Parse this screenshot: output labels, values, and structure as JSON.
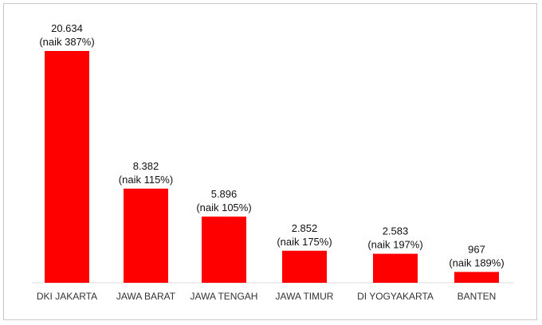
{
  "chart_data": {
    "type": "bar",
    "categories": [
      "DKI JAKARTA",
      "JAWA BARAT",
      "JAWA TENGAH",
      "JAWA TIMUR",
      "DI YOGYAKARTA",
      "BANTEN"
    ],
    "values": [
      20634,
      8382,
      5896,
      2852,
      2583,
      967
    ],
    "value_labels": [
      "20.634",
      "8.382",
      "5.896",
      "2.852",
      "2.583",
      "967"
    ],
    "change_labels": [
      "(naik 387%)",
      "(naik 115%)",
      "(naik 105%)",
      "(naik 175%)",
      "(naik 197%)",
      "(naik 189%)"
    ],
    "title": "",
    "xlabel": "",
    "ylabel": "",
    "ylim": [
      0,
      20634
    ],
    "grid": false,
    "legend": "none",
    "bar_color": "#ff0000"
  }
}
